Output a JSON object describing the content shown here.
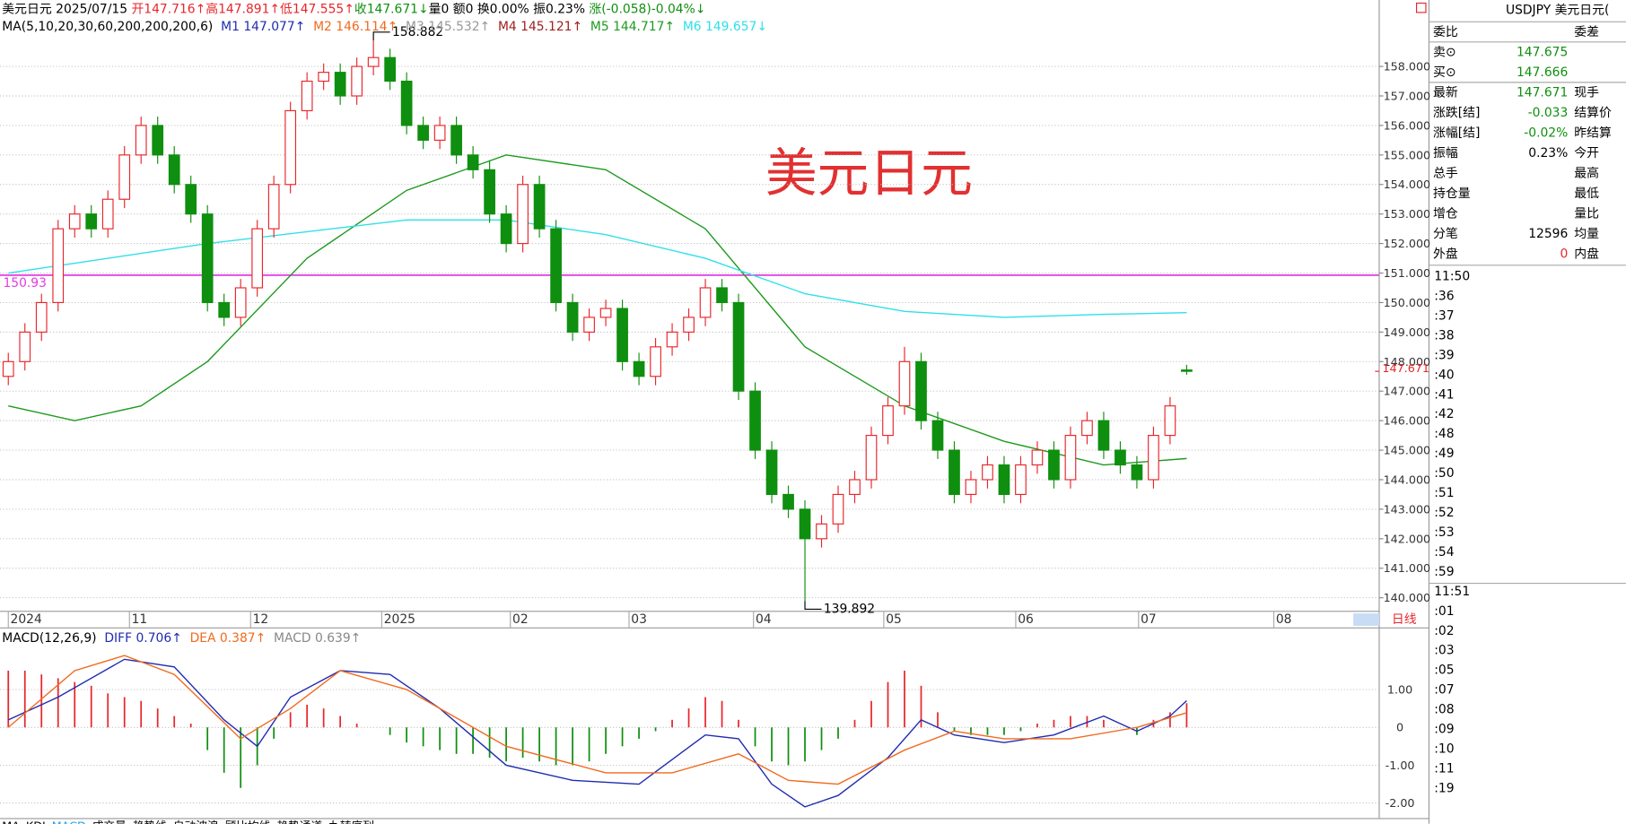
{
  "header": {
    "symbol": "美元日元",
    "date": "2025/07/15",
    "open": "开147.716↑",
    "high": "高147.891↑",
    "low": "低147.555↑",
    "close": "收147.671↓",
    "volume": "量0",
    "amount": "额0",
    "turnover": "换0.00%",
    "amplitude": "振0.23%",
    "change": "涨(-0.058)-0.04%↓"
  },
  "watermark": "美元日元",
  "chart_data": {
    "type": "candlestick",
    "candles": [
      [
        147.5,
        148.3,
        147.2,
        148.0
      ],
      [
        148.0,
        149.3,
        147.7,
        149.0
      ],
      [
        149.0,
        150.3,
        148.7,
        150.0
      ],
      [
        150.0,
        152.8,
        149.7,
        152.5
      ],
      [
        152.5,
        153.3,
        152.2,
        153.0
      ],
      [
        153.0,
        153.3,
        152.2,
        152.5
      ],
      [
        152.5,
        153.8,
        152.2,
        153.5
      ],
      [
        153.5,
        155.3,
        153.2,
        155.0
      ],
      [
        155.0,
        156.3,
        154.7,
        156.0
      ],
      [
        156.0,
        156.3,
        154.7,
        155.0
      ],
      [
        155.0,
        155.3,
        153.7,
        154.0
      ],
      [
        154.0,
        154.3,
        152.7,
        153.0
      ],
      [
        153.0,
        153.3,
        149.7,
        150.0
      ],
      [
        150.0,
        150.3,
        149.2,
        149.5
      ],
      [
        149.5,
        150.8,
        149.2,
        150.5
      ],
      [
        150.5,
        152.8,
        150.2,
        152.5
      ],
      [
        152.5,
        154.3,
        152.2,
        154.0
      ],
      [
        154.0,
        156.8,
        153.7,
        156.5
      ],
      [
        156.5,
        157.8,
        156.2,
        157.5
      ],
      [
        157.5,
        158.1,
        157.2,
        157.8
      ],
      [
        157.8,
        158.1,
        156.7,
        157.0
      ],
      [
        157.0,
        158.3,
        156.7,
        158.0
      ],
      [
        158.0,
        158.882,
        157.7,
        158.3
      ],
      [
        158.3,
        158.6,
        157.2,
        157.5
      ],
      [
        157.5,
        157.8,
        155.7,
        156.0
      ],
      [
        156.0,
        156.3,
        155.2,
        155.5
      ],
      [
        155.5,
        156.3,
        155.2,
        156.0
      ],
      [
        156.0,
        156.3,
        154.7,
        155.0
      ],
      [
        155.0,
        155.3,
        154.2,
        154.5
      ],
      [
        154.5,
        154.8,
        152.7,
        153.0
      ],
      [
        153.0,
        153.3,
        151.7,
        152.0
      ],
      [
        152.0,
        154.3,
        151.7,
        154.0
      ],
      [
        154.0,
        154.3,
        152.2,
        152.5
      ],
      [
        152.5,
        152.8,
        149.7,
        150.0
      ],
      [
        150.0,
        150.3,
        148.7,
        149.0
      ],
      [
        149.0,
        149.8,
        148.7,
        149.5
      ],
      [
        149.5,
        150.1,
        149.2,
        149.8
      ],
      [
        149.8,
        150.1,
        147.7,
        148.0
      ],
      [
        148.0,
        148.3,
        147.2,
        147.5
      ],
      [
        147.5,
        148.8,
        147.2,
        148.5
      ],
      [
        148.5,
        149.3,
        148.2,
        149.0
      ],
      [
        149.0,
        149.8,
        148.7,
        149.5
      ],
      [
        149.5,
        150.8,
        149.2,
        150.5
      ],
      [
        150.5,
        150.8,
        149.7,
        150.0
      ],
      [
        150.0,
        150.3,
        146.7,
        147.0
      ],
      [
        147.0,
        147.3,
        144.7,
        145.0
      ],
      [
        145.0,
        145.3,
        143.2,
        143.5
      ],
      [
        143.5,
        143.8,
        142.7,
        143.0
      ],
      [
        143.0,
        143.3,
        139.892,
        142.0
      ],
      [
        142.0,
        142.8,
        141.7,
        142.5
      ],
      [
        142.5,
        143.8,
        142.2,
        143.5
      ],
      [
        143.5,
        144.3,
        143.2,
        144.0
      ],
      [
        144.0,
        145.8,
        143.7,
        145.5
      ],
      [
        145.5,
        146.8,
        145.2,
        146.5
      ],
      [
        146.5,
        148.5,
        146.2,
        148.0
      ],
      [
        148.0,
        148.3,
        145.7,
        146.0
      ],
      [
        146.0,
        146.3,
        144.7,
        145.0
      ],
      [
        145.0,
        145.3,
        143.2,
        143.5
      ],
      [
        143.5,
        144.3,
        143.2,
        144.0
      ],
      [
        144.0,
        144.8,
        143.7,
        144.5
      ],
      [
        144.5,
        144.8,
        143.2,
        143.5
      ],
      [
        143.5,
        144.8,
        143.2,
        144.5
      ],
      [
        144.5,
        145.3,
        144.2,
        145.0
      ],
      [
        145.0,
        145.3,
        143.7,
        144.0
      ],
      [
        144.0,
        145.8,
        143.7,
        145.5
      ],
      [
        145.5,
        146.3,
        145.2,
        146.0
      ],
      [
        146.0,
        146.3,
        144.7,
        145.0
      ],
      [
        145.0,
        145.3,
        144.2,
        144.5
      ],
      [
        144.5,
        144.8,
        143.7,
        144.0
      ],
      [
        144.0,
        145.8,
        143.7,
        145.5
      ],
      [
        145.5,
        146.8,
        145.2,
        146.5
      ],
      [
        147.716,
        147.891,
        147.555,
        147.671
      ]
    ],
    "xlim": [
      -0.5,
      82.6
    ],
    "xticks": [
      {
        "value": 0,
        "label": "2024"
      },
      {
        "value": 7.3,
        "label": "11"
      },
      {
        "value": 14.6,
        "label": "12"
      },
      {
        "value": 22.5,
        "label": "2025"
      },
      {
        "value": 30.25,
        "label": "02"
      },
      {
        "value": 37.4,
        "label": "03"
      },
      {
        "value": 44.9,
        "label": "04"
      },
      {
        "value": 52.75,
        "label": "05"
      },
      {
        "value": 60.7,
        "label": "06"
      },
      {
        "value": 68.1,
        "label": "07"
      },
      {
        "value": 76.25,
        "label": "08"
      }
    ],
    "ylim": [
      139.54,
      160.25
    ],
    "yticks": [
      {
        "value": 140,
        "label": "140.000"
      },
      {
        "value": 141,
        "label": "141.000"
      },
      {
        "value": 142,
        "label": "142.000"
      },
      {
        "value": 143,
        "label": "143.000"
      },
      {
        "value": 144,
        "label": "144.000"
      },
      {
        "value": 145,
        "label": "145.000"
      },
      {
        "value": 146,
        "label": "146.000"
      },
      {
        "value": 147,
        "label": "147.000"
      },
      {
        "value": 148,
        "label": "148.000"
      },
      {
        "value": 149,
        "label": "149.000"
      },
      {
        "value": 150,
        "label": "150.000"
      },
      {
        "value": 151,
        "label": "151.000"
      },
      {
        "value": 152,
        "label": "152.000"
      },
      {
        "value": 153,
        "label": "153.000"
      },
      {
        "value": 154,
        "label": "154.000"
      },
      {
        "value": 155,
        "label": "155.000"
      },
      {
        "value": 156,
        "label": "156.000"
      },
      {
        "value": 157,
        "label": "157.000"
      },
      {
        "value": 158,
        "label": "158.000"
      }
    ],
    "grid": true,
    "up_color": "#e8262b",
    "down_color": "#0f8f0f",
    "hline": {
      "value": 150.93,
      "color": "#e23de2"
    },
    "last_price": 147.671,
    "annotations": [
      {
        "x": 22,
        "y": 158.882
      },
      {
        "x": 48,
        "y": 139.892
      }
    ],
    "period": "日线",
    "ma": {
      "label": "MA(5,10,20,30,60,200,200,200,6)",
      "items": [
        {
          "name": "M1",
          "value": "147.077↑",
          "color": "#1f2bb0"
        },
        {
          "name": "M2",
          "value": "146.114↑",
          "color": "#f06a1e"
        },
        {
          "name": "M3",
          "value": "145.532↑",
          "color": "#999999"
        },
        {
          "name": "M4",
          "value": "145.121↑",
          "color": "#a02020"
        },
        {
          "name": "M5",
          "value": "144.717↑",
          "color": "#1e9a1e",
          "x": [
            0,
            4,
            8,
            12,
            18,
            24,
            30,
            36,
            42,
            48,
            54,
            60,
            66,
            71
          ],
          "values": [
            146.5,
            146.0,
            146.5,
            148.0,
            151.5,
            153.8,
            155.0,
            154.5,
            152.5,
            148.5,
            146.5,
            145.3,
            144.5,
            144.717
          ]
        },
        {
          "name": "M6",
          "value": "149.657↓",
          "color": "#2fe0e8",
          "x": [
            0,
            12,
            24,
            30,
            36,
            42,
            48,
            54,
            60,
            66,
            71
          ],
          "values": [
            151.0,
            152.0,
            152.8,
            152.8,
            152.3,
            151.5,
            150.3,
            149.7,
            149.5,
            149.6,
            149.657
          ]
        }
      ]
    }
  },
  "macd": {
    "label": "MACD(12,26,9)",
    "items": [
      {
        "name": "DIFF",
        "value": "0.706↑",
        "color": "#1f2bb0",
        "x": [
          0,
          3,
          7,
          10,
          13,
          15,
          17,
          20,
          23,
          26,
          30,
          34,
          38,
          42,
          44,
          46,
          48,
          50,
          53,
          55,
          57,
          60,
          63,
          66,
          68,
          70,
          71
        ],
        "values": [
          0.2,
          0.8,
          1.8,
          1.6,
          0.2,
          -0.5,
          0.8,
          1.5,
          1.4,
          0.5,
          -1.0,
          -1.4,
          -1.5,
          -0.2,
          -0.3,
          -1.5,
          -2.1,
          -1.8,
          -0.8,
          0.2,
          -0.2,
          -0.4,
          -0.2,
          0.3,
          -0.1,
          0.3,
          0.706
        ]
      },
      {
        "name": "DEA",
        "value": "0.387↑",
        "color": "#f06a1e",
        "x": [
          0,
          4,
          7,
          10,
          14,
          17,
          20,
          24,
          30,
          36,
          40,
          44,
          47,
          50,
          54,
          57,
          60,
          64,
          68,
          71
        ],
        "values": [
          0.0,
          1.5,
          1.9,
          1.4,
          -0.3,
          0.5,
          1.5,
          1.0,
          -0.5,
          -1.2,
          -1.2,
          -0.7,
          -1.4,
          -1.5,
          -0.6,
          -0.1,
          -0.3,
          -0.3,
          0.0,
          0.387
        ]
      },
      {
        "name": "MACD",
        "value": "0.639↑",
        "color": "#888888"
      }
    ],
    "histogram": [
      1.5,
      1.5,
      1.4,
      1.3,
      1.2,
      1.1,
      0.9,
      0.8,
      0.7,
      0.5,
      0.3,
      0.1,
      -0.6,
      -1.2,
      -1.6,
      -1.0,
      -0.3,
      0.4,
      0.6,
      0.5,
      0.3,
      0.1,
      0.0,
      -0.2,
      -0.4,
      -0.5,
      -0.6,
      -0.7,
      -0.7,
      -0.8,
      -0.9,
      -0.8,
      -0.9,
      -1.0,
      -1.0,
      -0.9,
      -0.7,
      -0.5,
      -0.3,
      -0.1,
      0.2,
      0.5,
      0.8,
      0.7,
      0.2,
      -0.5,
      -0.9,
      -1.0,
      -0.9,
      -0.6,
      -0.3,
      0.2,
      0.7,
      1.2,
      1.5,
      1.1,
      0.4,
      -0.1,
      -0.2,
      -0.2,
      -0.2,
      -0.1,
      0.1,
      0.2,
      0.3,
      0.3,
      0.2,
      0.0,
      -0.2,
      0.2,
      0.4,
      0.639
    ],
    "ylim": [
      -2.41,
      2.63
    ],
    "yticks": [
      {
        "value": 1,
        "label": "1.00"
      },
      0,
      {
        "value": -1,
        "label": "-1.00"
      },
      {
        "value": -2,
        "label": "-2.00"
      }
    ]
  },
  "panel": {
    "title": "USDJPY 美元日元(",
    "rows": [
      {
        "label": "委比",
        "label2": "委差"
      },
      {
        "label": "卖⊙",
        "value": "147.675",
        "color": "#0f8f0f"
      },
      {
        "label": "买⊙",
        "value": "147.666",
        "color": "#0f8f0f"
      },
      {
        "label": "最新",
        "value": "147.671",
        "label2": "现手",
        "color": "#0f8f0f"
      },
      {
        "label": "涨跌[结]",
        "value": "-0.033",
        "label2": "结算价",
        "color": "#0f8f0f"
      },
      {
        "label": "涨幅[结]",
        "value": "-0.02%",
        "label2": "昨结算",
        "color": "#0f8f0f"
      },
      {
        "label": "振幅",
        "value": "0.23%",
        "label2": "今开",
        "color": "#000000"
      },
      {
        "label": "总手",
        "label2": "最高"
      },
      {
        "label": "持仓量",
        "label2": "最低"
      },
      {
        "label": "增仓",
        "label2": "量比"
      },
      {
        "label": "分笔",
        "value": "12596",
        "label2": "均量",
        "color": "#000000"
      },
      {
        "label": "外盘",
        "value": "0",
        "label2": "内盘",
        "color": "#e8262b"
      }
    ],
    "ticks": [
      "11:50",
      ":36",
      ":37",
      ":38",
      ":39",
      ":40",
      ":41",
      ":42",
      ":48",
      ":49",
      ":50",
      ":51",
      ":52",
      ":53",
      ":54",
      ":59",
      "11:51",
      ":01",
      ":02",
      ":03",
      ":05",
      ":07",
      ":08",
      ":09",
      ":10",
      ":11",
      ":19"
    ]
  },
  "tabs": [
    "MA",
    "KDJ",
    "MACD",
    "成交量",
    "趋势线",
    "自动波浪",
    "顾比均线",
    "趋势通道",
    "九转序列"
  ]
}
